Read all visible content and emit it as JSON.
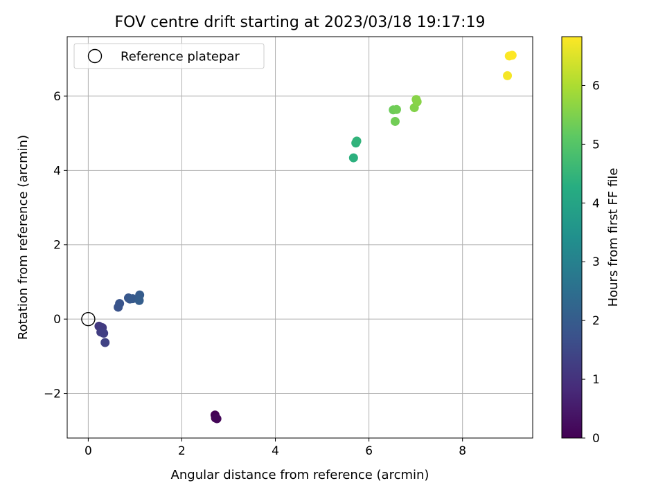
{
  "chart_data": {
    "type": "scatter",
    "title": "FOV centre drift starting at 2023/03/18 19:17:19",
    "xlabel": "Angular distance from reference (arcmin)",
    "ylabel": "Rotation from reference (arcmin)",
    "xlim": [
      -0.45,
      9.5
    ],
    "ylim": [
      -3.2,
      7.6
    ],
    "xticks": [
      0,
      2,
      4,
      6,
      8
    ],
    "xtick_labels": [
      "0",
      "2",
      "4",
      "6",
      "8"
    ],
    "yticks": [
      -2,
      0,
      2,
      4,
      6
    ],
    "ytick_labels": [
      "−2",
      "0",
      "2",
      "4",
      "6"
    ],
    "grid": true,
    "legend": {
      "placement": "upper-left",
      "entries": [
        "Reference platepar"
      ]
    },
    "reference_point": {
      "x": 0,
      "y": 0
    },
    "colorbar": {
      "label": "Hours from first FF file",
      "colormap": "viridis",
      "range": [
        0,
        6.83
      ],
      "ticks": [
        0,
        1,
        2,
        3,
        4,
        5,
        6
      ],
      "tick_labels": [
        "0",
        "1",
        "2",
        "3",
        "4",
        "5",
        "6"
      ]
    },
    "points": [
      {
        "x": 2.71,
        "y": -2.58,
        "hours": 0.0
      },
      {
        "x": 2.72,
        "y": -2.66,
        "hours": 0.05
      },
      {
        "x": 2.75,
        "y": -2.68,
        "hours": 0.1
      },
      {
        "x": 0.23,
        "y": -0.19,
        "hours": 1.15
      },
      {
        "x": 0.3,
        "y": -0.23,
        "hours": 1.2
      },
      {
        "x": 0.27,
        "y": -0.35,
        "hours": 1.25
      },
      {
        "x": 0.33,
        "y": -0.38,
        "hours": 1.3
      },
      {
        "x": 0.36,
        "y": -0.63,
        "hours": 1.35
      },
      {
        "x": 0.64,
        "y": 0.32,
        "hours": 1.75
      },
      {
        "x": 0.67,
        "y": 0.42,
        "hours": 1.8
      },
      {
        "x": 0.86,
        "y": 0.57,
        "hours": 1.85
      },
      {
        "x": 0.89,
        "y": 0.54,
        "hours": 1.9
      },
      {
        "x": 0.95,
        "y": 0.55,
        "hours": 1.95
      },
      {
        "x": 1.1,
        "y": 0.65,
        "hours": 2.0
      },
      {
        "x": 1.09,
        "y": 0.5,
        "hours": 2.05
      },
      {
        "x": 5.67,
        "y": 4.34,
        "hours": 4.35
      },
      {
        "x": 5.72,
        "y": 4.74,
        "hours": 4.4
      },
      {
        "x": 5.74,
        "y": 4.79,
        "hours": 4.45
      },
      {
        "x": 6.52,
        "y": 5.63,
        "hours": 5.3
      },
      {
        "x": 6.59,
        "y": 5.64,
        "hours": 5.35
      },
      {
        "x": 6.56,
        "y": 5.32,
        "hours": 5.35
      },
      {
        "x": 6.97,
        "y": 5.69,
        "hours": 5.55
      },
      {
        "x": 7.01,
        "y": 5.91,
        "hours": 5.6
      },
      {
        "x": 7.03,
        "y": 5.85,
        "hours": 5.6
      },
      {
        "x": 8.96,
        "y": 6.55,
        "hours": 6.75
      },
      {
        "x": 9.0,
        "y": 7.08,
        "hours": 6.8
      },
      {
        "x": 9.06,
        "y": 7.1,
        "hours": 6.83
      }
    ]
  }
}
